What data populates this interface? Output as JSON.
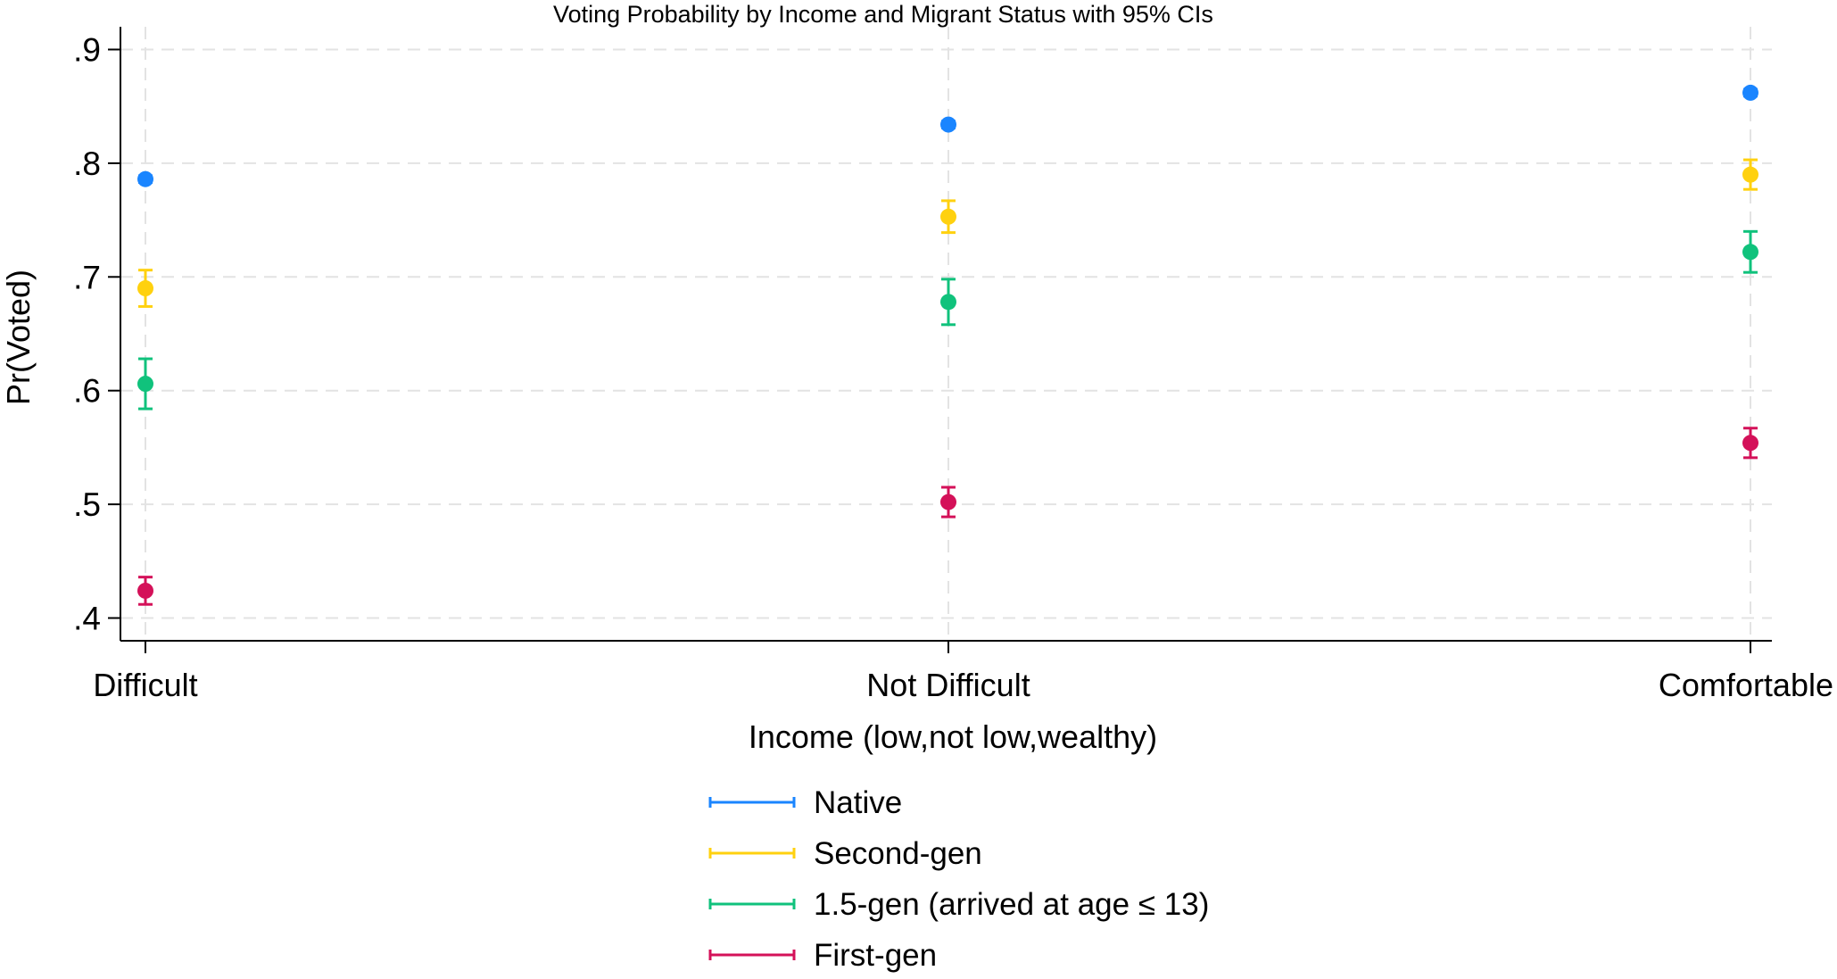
{
  "chart_data": {
    "type": "scatter",
    "title": "Voting Probability by Income and Migrant Status with 95% CIs",
    "xlabel": "Income (low,not low,wealthy)",
    "ylabel": "Pr(Voted)",
    "categories": [
      "Difficult",
      "Not Difficult",
      "Comfortable"
    ],
    "yticks": [
      0.4,
      0.5,
      0.6,
      0.7,
      0.8,
      0.9
    ],
    "ytick_labels": [
      ".4",
      ".5",
      ".6",
      ".7",
      ".8",
      ".9"
    ],
    "ylim": [
      0.38,
      0.92
    ],
    "grid": true,
    "legend_position": "bottom",
    "series": [
      {
        "name": "Native",
        "color": "#1a85ff",
        "values": [
          0.786,
          0.834,
          0.862
        ],
        "ci_low": [
          0.783,
          0.831,
          0.859
        ],
        "ci_high": [
          0.789,
          0.837,
          0.865
        ]
      },
      {
        "name": "Second-gen",
        "color": "#ffd10f",
        "values": [
          0.69,
          0.753,
          0.79
        ],
        "ci_low": [
          0.674,
          0.739,
          0.777
        ],
        "ci_high": [
          0.706,
          0.767,
          0.803
        ]
      },
      {
        "name": "1.5-gen (arrived at age ≤ 13)",
        "color": "#10c27c",
        "values": [
          0.606,
          0.678,
          0.722
        ],
        "ci_low": [
          0.584,
          0.658,
          0.704
        ],
        "ci_high": [
          0.628,
          0.698,
          0.74
        ]
      },
      {
        "name": "First-gen",
        "color": "#d41159",
        "values": [
          0.424,
          0.502,
          0.554
        ],
        "ci_low": [
          0.412,
          0.489,
          0.541
        ],
        "ci_high": [
          0.436,
          0.515,
          0.567
        ]
      }
    ]
  }
}
